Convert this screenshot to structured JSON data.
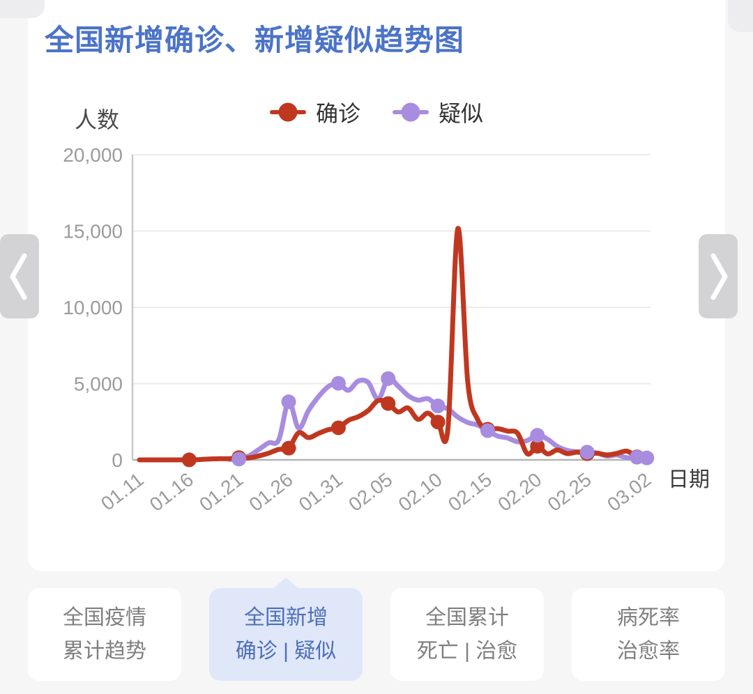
{
  "page": {
    "background": "#f6f6f7",
    "card_background": "#ffffff"
  },
  "header": {
    "title": "全国新增确诊、新增疑似趋势图",
    "title_color": "#4b73c8"
  },
  "carousel": {
    "icons": {
      "prev_arrow": "chevron-left",
      "next_arrow": "chevron-right"
    }
  },
  "chart_data": {
    "type": "line",
    "title": "全国新增确诊、新增疑似趋势图",
    "ylabel": "人数",
    "xlabel": "日期",
    "ylim": [
      0,
      20000
    ],
    "grid": true,
    "legend_position": "top",
    "yticks": [
      0,
      5000,
      10000,
      15000,
      20000
    ],
    "ytick_labels": [
      "0",
      "5,000",
      "10,000",
      "15,000",
      "20,000"
    ],
    "xtick_labels": [
      "01.11",
      "01.16",
      "01.21",
      "01.26",
      "01.31",
      "02.05",
      "02.10",
      "02.15",
      "02.20",
      "02.25",
      "03.02"
    ],
    "xtick_day_indices": [
      0,
      5,
      10,
      15,
      20,
      25,
      30,
      35,
      40,
      45,
      51
    ],
    "dates": [
      "01.11",
      "01.12",
      "01.13",
      "01.14",
      "01.15",
      "01.16",
      "01.17",
      "01.18",
      "01.19",
      "01.20",
      "01.21",
      "01.22",
      "01.23",
      "01.24",
      "01.25",
      "01.26",
      "01.27",
      "01.28",
      "01.29",
      "01.30",
      "01.31",
      "02.01",
      "02.02",
      "02.03",
      "02.04",
      "02.05",
      "02.06",
      "02.07",
      "02.08",
      "02.09",
      "02.10",
      "02.11",
      "02.12",
      "02.13",
      "02.14",
      "02.15",
      "02.16",
      "02.17",
      "02.18",
      "02.19",
      "02.20",
      "02.21",
      "02.22",
      "02.23",
      "02.24",
      "02.25",
      "02.26",
      "02.27",
      "02.28",
      "02.29",
      "03.01",
      "03.02"
    ],
    "series": [
      {
        "name": "确诊",
        "color": "#c0371f",
        "marker_day_indices": [
          5,
          10,
          15,
          20,
          25,
          30,
          35,
          40,
          45,
          50
        ],
        "values": [
          0,
          0,
          1,
          0,
          0,
          4,
          17,
          59,
          77,
          77,
          149,
          131,
          259,
          444,
          688,
          769,
          1771,
          1459,
          1737,
          1982,
          2102,
          2590,
          2829,
          3235,
          3887,
          3694,
          3143,
          3399,
          2656,
          3062,
          2478,
          2015,
          15152,
          5090,
          2641,
          2009,
          2048,
          1886,
          1749,
          394,
          889,
          397,
          648,
          409,
          508,
          406,
          433,
          327,
          427,
          573,
          202,
          125
        ]
      },
      {
        "name": "疑似",
        "color": "#a78ce0",
        "marker_day_indices": [
          10,
          15,
          20,
          25,
          30,
          35,
          40,
          45,
          50,
          51
        ],
        "values": [
          null,
          null,
          null,
          null,
          null,
          null,
          null,
          null,
          null,
          37,
          53,
          257,
          680,
          1118,
          1309,
          3806,
          2077,
          3248,
          4148,
          4812,
          5019,
          4562,
          5173,
          5072,
          3971,
          5328,
          4833,
          4214,
          3916,
          4008,
          3536,
          3342,
          2807,
          2450,
          2277,
          1918,
          1563,
          1432,
          1185,
          1277,
          1614,
          1361,
          882,
          620,
          530,
          508,
          452,
          248,
          318,
          141,
          175,
          129
        ]
      }
    ],
    "axis_colors": {
      "tick_text": "#9b9b9b",
      "grid_line": "#ebebeb",
      "axis_line": "#b3b3b3"
    }
  },
  "tabs": [
    {
      "line1": "全国疫情",
      "line2": "累计趋势",
      "active": false
    },
    {
      "line1": "全国新增",
      "line2": "确诊 | 疑似",
      "active": true
    },
    {
      "line1": "全国累计",
      "line2": "死亡 | 治愈",
      "active": false
    },
    {
      "line1": "病死率",
      "line2": "治愈率",
      "active": false
    }
  ]
}
